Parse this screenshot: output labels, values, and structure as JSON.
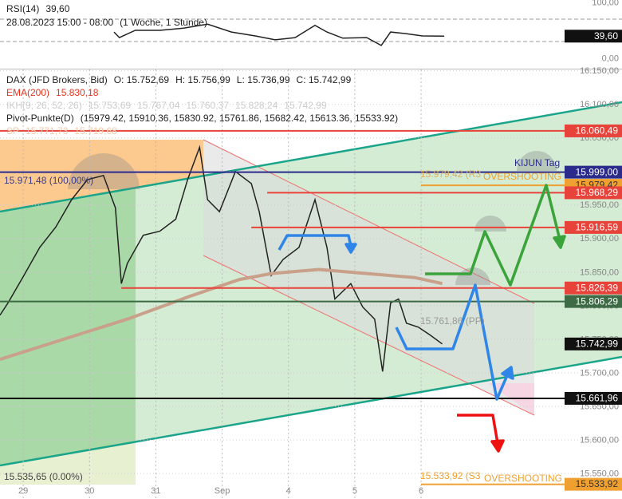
{
  "chart_data": [
    {
      "type": "line",
      "title": "RSI(14)",
      "period": "28.08.2023 15:00 - 08:00",
      "interval": "(1 Woche, 1 Stunde)",
      "xlim": [
        -0.35,
        9.03
      ],
      "ylim": [
        -18.6,
        104.3
      ],
      "yticks": [
        {
          "value": 100,
          "label": "100,00"
        },
        {
          "value": 0,
          "label": "0,00"
        }
      ],
      "levels": [
        70,
        30
      ],
      "series": [
        {
          "name": "RSI(14)",
          "color": "#222222",
          "last_label": "39,60",
          "x": [
            1.37,
            1.45,
            1.69,
            2.06,
            2.42,
            2.78,
            3.14,
            3.5,
            3.8,
            4.1,
            4.4,
            4.58,
            4.82,
            5.18,
            5.4,
            5.54,
            5.78,
            6.02,
            6.35
          ],
          "values": [
            47,
            37,
            50,
            50,
            54,
            61,
            47,
            40,
            33,
            37,
            59,
            47,
            36,
            37,
            23,
            47,
            44,
            40,
            39.6
          ]
        }
      ]
    },
    {
      "type": "line",
      "xlim": [
        -0.35,
        9.03
      ],
      "xticks": [
        {
          "value": 0,
          "label": "29"
        },
        {
          "value": 1,
          "label": "30"
        },
        {
          "value": 2,
          "label": "31"
        },
        {
          "value": 3,
          "label": "Sep"
        },
        {
          "value": 4,
          "label": "4"
        },
        {
          "value": 5,
          "label": "5"
        },
        {
          "value": 6,
          "label": "6"
        }
      ],
      "ylim": [
        15512,
        16152
      ],
      "yticks": [
        {
          "value": 15550,
          "label": "15.550,00"
        },
        {
          "value": 15600,
          "label": "15.600,00"
        },
        {
          "value": 15650,
          "label": "15.650,00"
        },
        {
          "value": 15700,
          "label": "15.700,00"
        },
        {
          "value": 15750,
          "label": "15.750,00"
        },
        {
          "value": 15800,
          "label": "15.800,00"
        },
        {
          "value": 15850,
          "label": "15.850,00"
        },
        {
          "value": 15900,
          "label": "15.900,00"
        },
        {
          "value": 15950,
          "label": "15.950,00"
        },
        {
          "value": 16000,
          "label": "16.000,00"
        },
        {
          "value": 16050,
          "label": "16.050,00"
        },
        {
          "value": 16100,
          "label": "16.100,00"
        },
        {
          "value": 16150,
          "label": "16.150,00"
        }
      ],
      "grid": true,
      "series": [
        {
          "name": "DAX (JFD Brokers, Bid)",
          "color": "#222222",
          "ohlc_labels": [
            "O: 15.752,69",
            "H: 15.756,99",
            "L: 15.736,99",
            "C: 15.742,99"
          ],
          "last_label": "15.742,99",
          "x": [
            -0.35,
            -0.23,
            0.01,
            0.25,
            0.49,
            0.73,
            0.97,
            1.21,
            1.39,
            1.48,
            1.57,
            1.81,
            2.06,
            2.3,
            2.48,
            2.66,
            2.78,
            2.96,
            3.2,
            3.44,
            3.56,
            3.74,
            3.92,
            4.16,
            4.4,
            4.58,
            4.7,
            4.94,
            5.12,
            5.3,
            5.42,
            5.54,
            5.66,
            5.78,
            5.96,
            6.14,
            6.32
          ],
          "values": [
            15786,
            15804,
            15845,
            15887,
            15917,
            15958,
            15988,
            15994,
            15946,
            15833,
            15863,
            15905,
            15911,
            15929,
            15988,
            16036,
            15958,
            15940,
            16000,
            15982,
            15940,
            15845,
            15869,
            15887,
            15958,
            15887,
            15810,
            15833,
            15798,
            15780,
            15702,
            15804,
            15810,
            15774,
            15768,
            15756,
            15742.99
          ]
        },
        {
          "name": "EMA(200)",
          "color": "#c9a08a",
          "value_label": "15.830,18",
          "x": [
            -0.35,
            0.61,
            1.57,
            2.54,
            3.26,
            3.74,
            4.46,
            5.18,
            5.9,
            6.32
          ],
          "values": [
            15720,
            15750,
            15780,
            15815,
            15839,
            15848,
            15854,
            15848,
            15842,
            15833
          ]
        }
      ],
      "indicators": [
        {
          "name": "IKH(9, 26, 52, 26)",
          "color": "#cccccc",
          "values": [
            "15.753,69",
            "15.767,04",
            "15.760,37",
            "15.828,24",
            "15.742,99"
          ]
        },
        {
          "name": "Pivot-Punkte(D)",
          "color": "#222222",
          "values": [
            "(15979.42, 15910.36, 15830.92, 15761.86, 15682.42, 15613.36, 15533.92)"
          ]
        },
        {
          "name": "SP",
          "color": "#f2c9a6",
          "values": [
            "15.771,73",
            "15.719,68"
          ]
        }
      ],
      "levels": [
        {
          "value": 15979.42,
          "label": "15.979,42",
          "color": "#f0a030",
          "x_from": 6.0
        },
        {
          "value": 16060.49,
          "label": "16.060,49",
          "color": "#e8433a",
          "x_from": -0.35
        },
        {
          "value": 15999.0,
          "label": "15.999,00",
          "color": "#2b2b8c",
          "x_from": -0.35
        },
        {
          "value": 15968.29,
          "label": "15.968,29",
          "color": "#e8433a",
          "x_from": 3.68
        },
        {
          "value": 15916.59,
          "label": "15.916,59",
          "color": "#e8433a",
          "x_from": 3.44
        },
        {
          "value": 15826.39,
          "label": "15.826,39",
          "color": "#e8433a",
          "x_from": 1.48
        },
        {
          "value": 15806.29,
          "label": "15.806,29",
          "color": "#3d6b45",
          "x_from": -0.35
        },
        {
          "value": 15661.96,
          "label": "15.661,96",
          "color": "#111111",
          "x_from": -0.35
        },
        {
          "value": 15533.92,
          "label": "15.533,92",
          "color": "#f0a030",
          "x_from": 6.0
        }
      ],
      "annotations": [
        "15.971,48 (100,00%)",
        "15.535,65 (0.00%)",
        "KIJUN Tag",
        "15.979,42 (R3",
        "OVERSHOOTING",
        "15.761,86 (PP)",
        "15.533,92 (S3",
        "OVERSHOOTING"
      ]
    }
  ]
}
